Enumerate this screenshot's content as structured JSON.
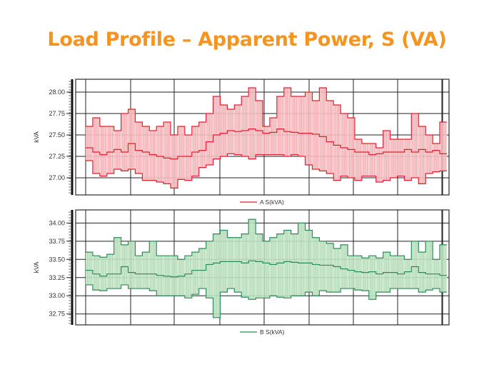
{
  "title": "Load Profile – Apparent Power, S (VA)",
  "colors": {
    "title": "#F7941D",
    "a_line": "#E0202E",
    "a_fill": "#F6C4C8",
    "b_line": "#2E8B57",
    "b_fill": "#C5E6C8"
  },
  "chart_data": [
    {
      "type": "area",
      "title": "",
      "ylabel": "kVA",
      "xlabel": "",
      "legend": "A S(kVA)",
      "legend_position": "bottom-center",
      "grid": true,
      "ylim": [
        26.8,
        28.15
      ],
      "yticks": [
        "28.00",
        "27.75",
        "27.50",
        "27.25",
        "27.00"
      ],
      "ytick_values": [
        28.0,
        27.75,
        27.5,
        27.25,
        27.0
      ],
      "series": [
        {
          "name": "max",
          "values": [
            27.6,
            27.7,
            27.6,
            27.6,
            27.55,
            27.75,
            27.8,
            27.65,
            27.6,
            27.55,
            27.6,
            27.65,
            27.5,
            27.6,
            27.5,
            27.6,
            27.65,
            27.75,
            27.95,
            27.85,
            27.8,
            27.85,
            27.95,
            28.05,
            27.9,
            27.6,
            27.7,
            27.95,
            28.05,
            27.95,
            27.95,
            28.0,
            27.9,
            28.05,
            27.9,
            27.85,
            27.75,
            27.7,
            27.45,
            27.4,
            27.4,
            27.35,
            27.55,
            27.45,
            27.45,
            27.45,
            27.75,
            27.6,
            27.5,
            27.4,
            27.65
          ]
        },
        {
          "name": "avg",
          "values": [
            27.35,
            27.3,
            27.27,
            27.3,
            27.33,
            27.3,
            27.4,
            27.32,
            27.3,
            27.27,
            27.25,
            27.23,
            27.22,
            27.25,
            27.25,
            27.3,
            27.32,
            27.42,
            27.5,
            27.52,
            27.55,
            27.54,
            27.55,
            27.57,
            27.55,
            27.52,
            27.53,
            27.57,
            27.54,
            27.53,
            27.52,
            27.52,
            27.51,
            27.48,
            27.42,
            27.38,
            27.35,
            27.33,
            27.3,
            27.3,
            27.27,
            27.28,
            27.3,
            27.3,
            27.3,
            27.33,
            27.3,
            27.33,
            27.3,
            27.32,
            27.28
          ]
        },
        {
          "name": "min",
          "values": [
            27.2,
            27.05,
            27.02,
            27.05,
            27.1,
            27.08,
            27.1,
            27.05,
            26.97,
            26.97,
            26.95,
            26.93,
            26.88,
            26.98,
            26.97,
            27.02,
            27.12,
            27.15,
            27.22,
            27.25,
            27.28,
            27.27,
            27.25,
            27.22,
            27.27,
            27.27,
            27.27,
            27.27,
            27.25,
            27.27,
            27.25,
            27.15,
            27.1,
            27.08,
            27.05,
            26.97,
            27.02,
            27.0,
            26.97,
            27.02,
            27.02,
            26.95,
            26.97,
            27.0,
            27.02,
            26.97,
            27.0,
            26.93,
            27.05,
            27.07,
            27.08
          ]
        }
      ]
    },
    {
      "type": "area",
      "title": "",
      "ylabel": "kVA",
      "xlabel": "",
      "legend": "B S(kVA)",
      "legend_position": "bottom-center",
      "grid": true,
      "ylim": [
        32.6,
        34.18
      ],
      "yticks": [
        "34.00",
        "33.75",
        "33.50",
        "33.25",
        "33.00",
        "32.75"
      ],
      "ytick_values": [
        34.0,
        33.75,
        33.5,
        33.25,
        33.0,
        32.75
      ],
      "series": [
        {
          "name": "max",
          "values": [
            33.6,
            33.55,
            33.53,
            33.57,
            33.8,
            33.7,
            33.75,
            33.55,
            33.6,
            33.75,
            33.55,
            33.55,
            33.55,
            33.5,
            33.55,
            33.6,
            33.65,
            33.75,
            33.85,
            33.9,
            33.8,
            33.8,
            33.85,
            34.05,
            33.85,
            33.75,
            33.8,
            33.85,
            33.9,
            33.85,
            34.0,
            33.9,
            33.8,
            33.75,
            33.72,
            33.65,
            33.7,
            33.55,
            33.55,
            33.52,
            33.55,
            33.52,
            33.6,
            33.55,
            33.55,
            33.5,
            33.75,
            33.6,
            33.75,
            33.5,
            33.7
          ]
        },
        {
          "name": "avg",
          "values": [
            33.35,
            33.3,
            33.27,
            33.3,
            33.3,
            33.4,
            33.32,
            33.3,
            33.3,
            33.3,
            33.28,
            33.27,
            33.26,
            33.27,
            33.3,
            33.35,
            33.35,
            33.43,
            33.45,
            33.47,
            33.47,
            33.47,
            33.45,
            33.48,
            33.47,
            33.45,
            33.43,
            33.45,
            33.47,
            33.46,
            33.45,
            33.45,
            33.43,
            33.42,
            33.42,
            33.4,
            33.37,
            33.35,
            33.33,
            33.32,
            33.33,
            33.3,
            33.32,
            33.32,
            33.3,
            33.33,
            33.4,
            33.32,
            33.3,
            33.3,
            33.28
          ]
        },
        {
          "name": "min",
          "values": [
            33.15,
            33.08,
            33.07,
            33.1,
            33.1,
            33.15,
            33.1,
            33.1,
            33.1,
            33.07,
            33.0,
            33.0,
            33.0,
            33.0,
            32.97,
            33.02,
            33.1,
            32.97,
            32.7,
            33.05,
            33.1,
            33.05,
            32.98,
            32.95,
            32.97,
            32.97,
            33.0,
            32.98,
            32.97,
            33.0,
            33.0,
            33.05,
            33.0,
            33.07,
            33.05,
            33.05,
            33.1,
            33.1,
            33.08,
            33.07,
            32.95,
            33.05,
            33.05,
            33.1,
            33.1,
            33.1,
            33.1,
            33.05,
            33.08,
            33.1,
            33.05
          ]
        }
      ]
    }
  ]
}
